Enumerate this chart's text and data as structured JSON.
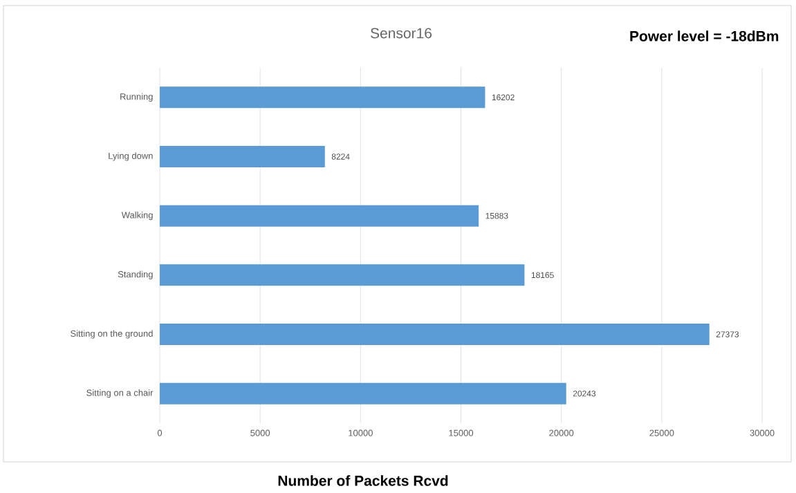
{
  "chart_data": {
    "type": "bar",
    "orientation": "horizontal",
    "title": "Sensor16",
    "annotations": [
      "Power level = -18dBm"
    ],
    "xlabel": "Number of Packets Rcvd",
    "categories": [
      "Running",
      "Lying down",
      "Walking",
      "Standing",
      "Sitting on the ground",
      "Sitting on a chair"
    ],
    "values": [
      16202,
      8224,
      15883,
      18165,
      27373,
      20243
    ],
    "color": "#5b9bd5",
    "xlim": [
      0,
      30000
    ],
    "xticks": [
      0,
      5000,
      10000,
      15000,
      20000,
      25000,
      30000
    ],
    "grid": "x",
    "data_labels": true
  }
}
